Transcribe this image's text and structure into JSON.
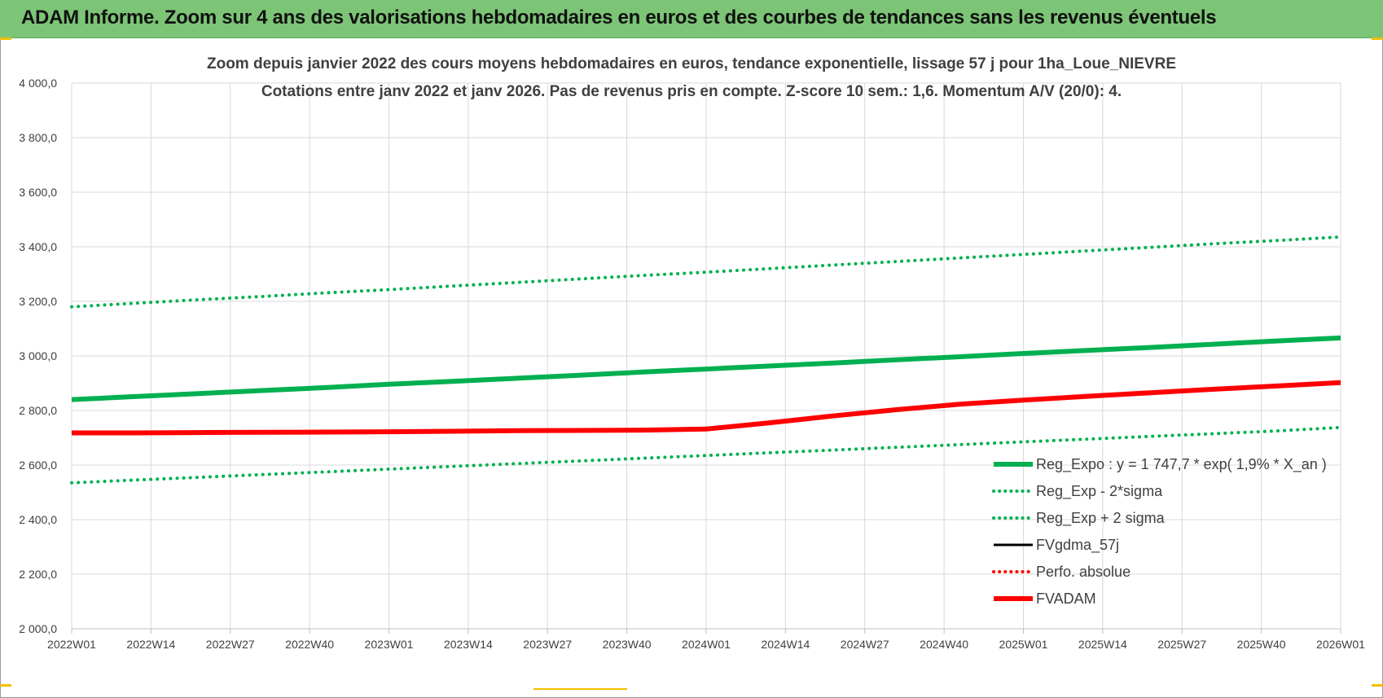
{
  "header": {
    "title": "ADAM Informe. Zoom sur 4 ans des valorisations hebdomadaires en euros et des courbes de tendances sans les revenus éventuels"
  },
  "colors": {
    "banner": "#7cc576",
    "green": "#00b050",
    "red": "#ff0000",
    "black": "#000000",
    "grid": "#d9d9d9",
    "accent_yellow": "#f0c000"
  },
  "chart_data": {
    "type": "line",
    "title": "Zoom depuis janvier 2022 des cours moyens hebdomadaires en euros, tendance exponentielle, lissage 57 j pour 1ha_Loue_NIEVRE",
    "subtitle": "Cotations entre janv 2022 et janv 2026. Pas de revenus pris en compte. Z-score 10 sem.: 1,6. Momentum A/V (20/0): 4.",
    "xlabel": "",
    "ylabel": "",
    "x_ticks": [
      "2022W01",
      "2022W14",
      "2022W27",
      "2022W40",
      "2023W01",
      "2023W14",
      "2023W27",
      "2023W40",
      "2024W01",
      "2024W14",
      "2024W27",
      "2024W40",
      "2025W01",
      "2025W14",
      "2025W27",
      "2025W40",
      "2026W01"
    ],
    "y_ticks": [
      "2 000,0",
      "2 200,0",
      "2 400,0",
      "2 600,0",
      "2 800,0",
      "3 000,0",
      "3 200,0",
      "3 400,0",
      "3 600,0",
      "3 800,0",
      "4 000,0"
    ],
    "ylim": [
      2000,
      4000
    ],
    "grid": true,
    "legend_position": "bottom-right",
    "series": [
      {
        "name": "Reg_Expo : y = 1 747,7 * exp( 1,9% *  X_an )",
        "style": "solid-thick",
        "color": "#00b050",
        "values": [
          2840,
          2851,
          2862,
          2873,
          2884,
          2896,
          2907,
          2918,
          2929,
          2941,
          2952,
          2963,
          2974,
          2986,
          2997,
          3009,
          3020,
          3031,
          3043,
          3055,
          3066
        ]
      },
      {
        "name": "Reg_Exp - 2*sigma",
        "style": "dotted",
        "color": "#00b050",
        "values": [
          2535,
          2545,
          2555,
          2565,
          2575,
          2585,
          2595,
          2605,
          2615,
          2625,
          2635,
          2645,
          2655,
          2665,
          2675,
          2685,
          2695,
          2705,
          2715,
          2725,
          2738
        ]
      },
      {
        "name": "Reg_Exp + 2 sigma",
        "style": "dotted",
        "color": "#00b050",
        "values": [
          3180,
          3193,
          3206,
          3218,
          3231,
          3243,
          3256,
          3269,
          3282,
          3295,
          3307,
          3320,
          3333,
          3346,
          3359,
          3372,
          3385,
          3398,
          3411,
          3423,
          3436
        ]
      },
      {
        "name": "FVgdma_57j",
        "style": "solid",
        "color": "#000000",
        "values": [
          2718,
          2718,
          2719,
          2720,
          2721,
          2722,
          2724,
          2726,
          2728,
          2731,
          2736,
          2755,
          2780,
          2803,
          2823,
          2838,
          2852,
          2865,
          2878,
          2890,
          2902
        ]
      },
      {
        "name": "Perfo. absolue",
        "style": "dotted",
        "color": "#ff0000",
        "values": []
      },
      {
        "name": "FVADAM",
        "style": "solid-thick",
        "color": "#ff0000",
        "values": [
          2718,
          2718,
          2719,
          2720,
          2721,
          2722,
          2724,
          2726,
          2727,
          2728,
          2732,
          2755,
          2780,
          2803,
          2823,
          2838,
          2852,
          2865,
          2878,
          2890,
          2902
        ]
      }
    ]
  }
}
